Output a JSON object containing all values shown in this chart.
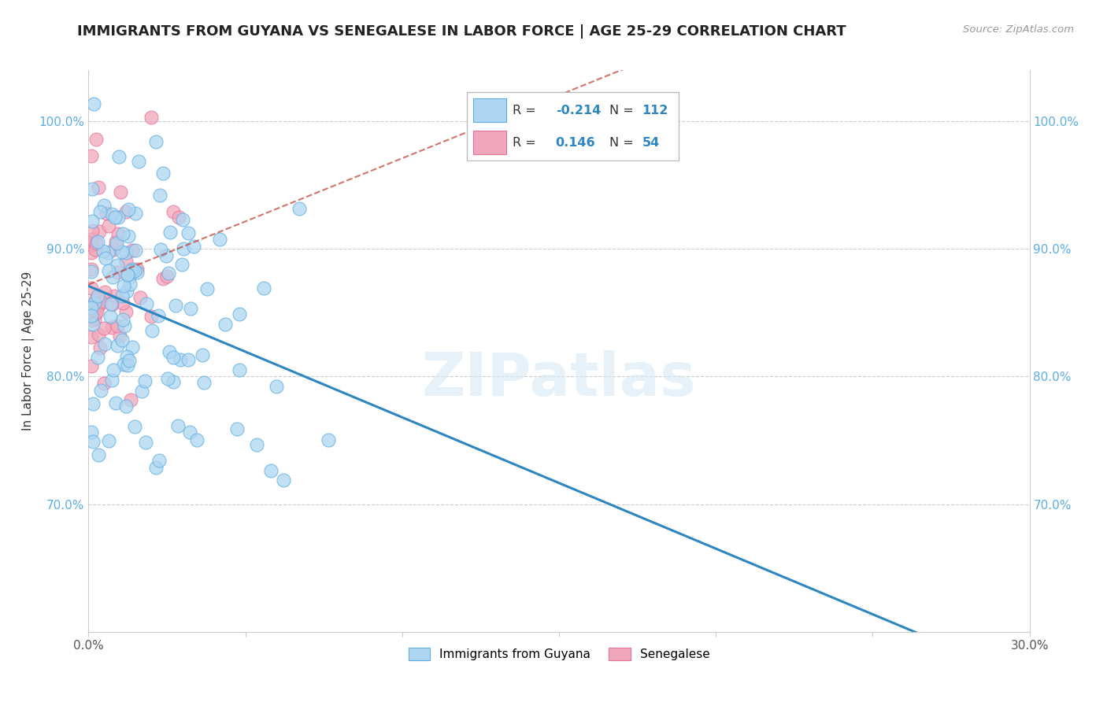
{
  "title": "IMMIGRANTS FROM GUYANA VS SENEGALESE IN LABOR FORCE | AGE 25-29 CORRELATION CHART",
  "source": "Source: ZipAtlas.com",
  "ylabel": "In Labor Force | Age 25-29",
  "xlim": [
    0.0,
    0.3
  ],
  "ylim": [
    0.6,
    1.04
  ],
  "xticks": [
    0.0,
    0.05,
    0.1,
    0.15,
    0.2,
    0.25,
    0.3
  ],
  "xtick_labels": [
    "0.0%",
    "",
    "",
    "",
    "",
    "",
    "30.0%"
  ],
  "yticks": [
    0.7,
    0.8,
    0.9,
    1.0
  ],
  "ytick_labels": [
    "70.0%",
    "80.0%",
    "90.0%",
    "100.0%"
  ],
  "legend_labels": [
    "Immigrants from Guyana",
    "Senegalese"
  ],
  "legend_r_values": [
    "-0.214",
    "0.146"
  ],
  "legend_n_values": [
    "112",
    "54"
  ],
  "blue_color": "#AED6F1",
  "pink_color": "#F1A7BB",
  "blue_edge_color": "#5DADE2",
  "pink_edge_color": "#E57399",
  "blue_line_color": "#2E86C1",
  "pink_line_color": "#C0392B",
  "title_fontsize": 13,
  "axis_fontsize": 11,
  "tick_fontsize": 11,
  "right_tick_color": "#5DADE2",
  "watermark": "ZIPatlas"
}
